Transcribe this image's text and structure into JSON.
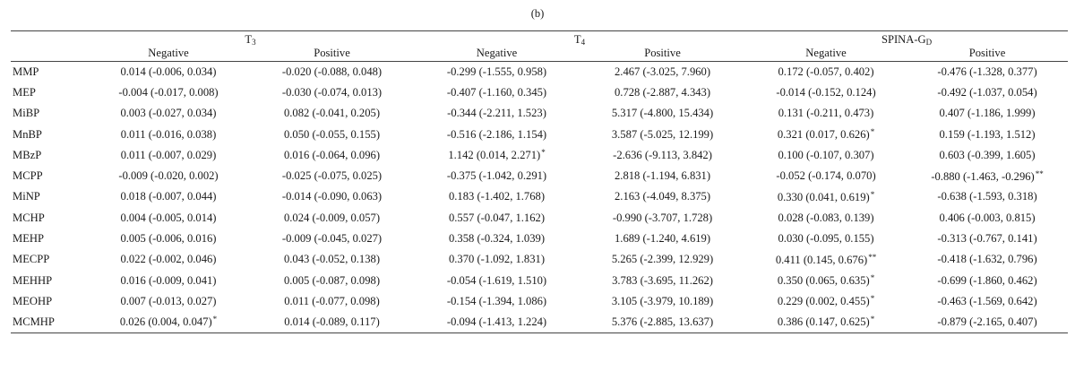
{
  "caption": "(b)",
  "groups": [
    {
      "base": "T",
      "sub": "3"
    },
    {
      "base": "T",
      "sub": "4"
    },
    {
      "base": "SPINA-G",
      "sub": "D"
    }
  ],
  "subheaders": [
    "Negative",
    "Positive",
    "Negative",
    "Positive",
    "Negative",
    "Positive"
  ],
  "rows": [
    {
      "label": "MMP",
      "cells": [
        {
          "v": "0.014 (-0.006, 0.034)",
          "s": ""
        },
        {
          "v": "-0.020 (-0.088, 0.048)",
          "s": ""
        },
        {
          "v": "-0.299 (-1.555, 0.958)",
          "s": ""
        },
        {
          "v": "2.467 (-3.025, 7.960)",
          "s": ""
        },
        {
          "v": "0.172 (-0.057, 0.402)",
          "s": ""
        },
        {
          "v": "-0.476 (-1.328, 0.377)",
          "s": ""
        }
      ]
    },
    {
      "label": "MEP",
      "cells": [
        {
          "v": "-0.004 (-0.017, 0.008)",
          "s": ""
        },
        {
          "v": "-0.030 (-0.074, 0.013)",
          "s": ""
        },
        {
          "v": "-0.407 (-1.160, 0.345)",
          "s": ""
        },
        {
          "v": "0.728 (-2.887, 4.343)",
          "s": ""
        },
        {
          "v": "-0.014 (-0.152, 0.124)",
          "s": ""
        },
        {
          "v": "-0.492 (-1.037, 0.054)",
          "s": ""
        }
      ]
    },
    {
      "label": "MiBP",
      "cells": [
        {
          "v": "0.003 (-0.027, 0.034)",
          "s": ""
        },
        {
          "v": "0.082 (-0.041, 0.205)",
          "s": ""
        },
        {
          "v": "-0.344 (-2.211, 1.523)",
          "s": ""
        },
        {
          "v": "5.317 (-4.800, 15.434)",
          "s": ""
        },
        {
          "v": "0.131 (-0.211, 0.473)",
          "s": ""
        },
        {
          "v": "0.407 (-1.186, 1.999)",
          "s": ""
        }
      ]
    },
    {
      "label": "MnBP",
      "cells": [
        {
          "v": "0.011 (-0.016, 0.038)",
          "s": ""
        },
        {
          "v": "0.050 (-0.055, 0.155)",
          "s": ""
        },
        {
          "v": "-0.516 (-2.186, 1.154)",
          "s": ""
        },
        {
          "v": "3.587 (-5.025, 12.199)",
          "s": ""
        },
        {
          "v": "0.321 (0.017, 0.626)",
          "s": "*"
        },
        {
          "v": "0.159 (-1.193, 1.512)",
          "s": ""
        }
      ]
    },
    {
      "label": "MBzP",
      "cells": [
        {
          "v": "0.011 (-0.007, 0.029)",
          "s": ""
        },
        {
          "v": "0.016 (-0.064, 0.096)",
          "s": ""
        },
        {
          "v": "1.142 (0.014, 2.271)",
          "s": "*"
        },
        {
          "v": "-2.636 (-9.113, 3.842)",
          "s": ""
        },
        {
          "v": "0.100 (-0.107, 0.307)",
          "s": ""
        },
        {
          "v": "0.603 (-0.399, 1.605)",
          "s": ""
        }
      ]
    },
    {
      "label": "MCPP",
      "cells": [
        {
          "v": "-0.009 (-0.020, 0.002)",
          "s": ""
        },
        {
          "v": "-0.025 (-0.075, 0.025)",
          "s": ""
        },
        {
          "v": "-0.375 (-1.042, 0.291)",
          "s": ""
        },
        {
          "v": "2.818 (-1.194, 6.831)",
          "s": ""
        },
        {
          "v": "-0.052 (-0.174, 0.070)",
          "s": ""
        },
        {
          "v": "-0.880 (-1.463, -0.296)",
          "s": "**"
        }
      ]
    },
    {
      "label": "MiNP",
      "cells": [
        {
          "v": "0.018 (-0.007, 0.044)",
          "s": ""
        },
        {
          "v": "-0.014 (-0.090, 0.063)",
          "s": ""
        },
        {
          "v": "0.183 (-1.402, 1.768)",
          "s": ""
        },
        {
          "v": "2.163 (-4.049, 8.375)",
          "s": ""
        },
        {
          "v": "0.330 (0.041, 0.619)",
          "s": "*"
        },
        {
          "v": "-0.638 (-1.593, 0.318)",
          "s": ""
        }
      ]
    },
    {
      "label": "MCHP",
      "cells": [
        {
          "v": "0.004 (-0.005, 0.014)",
          "s": ""
        },
        {
          "v": "0.024 (-0.009, 0.057)",
          "s": ""
        },
        {
          "v": "0.557 (-0.047, 1.162)",
          "s": ""
        },
        {
          "v": "-0.990 (-3.707, 1.728)",
          "s": ""
        },
        {
          "v": "0.028 (-0.083, 0.139)",
          "s": ""
        },
        {
          "v": "0.406 (-0.003, 0.815)",
          "s": ""
        }
      ]
    },
    {
      "label": "MEHP",
      "cells": [
        {
          "v": "0.005 (-0.006, 0.016)",
          "s": ""
        },
        {
          "v": "-0.009 (-0.045, 0.027)",
          "s": ""
        },
        {
          "v": "0.358 (-0.324, 1.039)",
          "s": ""
        },
        {
          "v": "1.689 (-1.240, 4.619)",
          "s": ""
        },
        {
          "v": "0.030 (-0.095, 0.155)",
          "s": ""
        },
        {
          "v": "-0.313 (-0.767, 0.141)",
          "s": ""
        }
      ]
    },
    {
      "label": "MECPP",
      "cells": [
        {
          "v": "0.022 (-0.002, 0.046)",
          "s": ""
        },
        {
          "v": "0.043 (-0.052, 0.138)",
          "s": ""
        },
        {
          "v": "0.370 (-1.092, 1.831)",
          "s": ""
        },
        {
          "v": "5.265 (-2.399, 12.929)",
          "s": ""
        },
        {
          "v": "0.411 (0.145, 0.676)",
          "s": "**"
        },
        {
          "v": "-0.418 (-1.632, 0.796)",
          "s": ""
        }
      ]
    },
    {
      "label": "MEHHP",
      "cells": [
        {
          "v": "0.016 (-0.009, 0.041)",
          "s": ""
        },
        {
          "v": "0.005 (-0.087, 0.098)",
          "s": ""
        },
        {
          "v": "-0.054 (-1.619, 1.510)",
          "s": ""
        },
        {
          "v": "3.783 (-3.695, 11.262)",
          "s": ""
        },
        {
          "v": "0.350 (0.065, 0.635)",
          "s": "*"
        },
        {
          "v": "-0.699 (-1.860, 0.462)",
          "s": ""
        }
      ]
    },
    {
      "label": "MEOHP",
      "cells": [
        {
          "v": "0.007 (-0.013, 0.027)",
          "s": ""
        },
        {
          "v": "0.011 (-0.077, 0.098)",
          "s": ""
        },
        {
          "v": "-0.154 (-1.394, 1.086)",
          "s": ""
        },
        {
          "v": "3.105 (-3.979, 10.189)",
          "s": ""
        },
        {
          "v": "0.229 (0.002, 0.455)",
          "s": "*"
        },
        {
          "v": "-0.463 (-1.569, 0.642)",
          "s": ""
        }
      ]
    },
    {
      "label": "MCMHP",
      "cells": [
        {
          "v": "0.026 (0.004, 0.047)",
          "s": "*"
        },
        {
          "v": "0.014 (-0.089, 0.117)",
          "s": ""
        },
        {
          "v": "-0.094 (-1.413, 1.224)",
          "s": ""
        },
        {
          "v": "5.376 (-2.885, 13.637)",
          "s": ""
        },
        {
          "v": "0.386 (0.147, 0.625)",
          "s": "*"
        },
        {
          "v": "-0.879 (-2.165, 0.407)",
          "s": ""
        }
      ]
    }
  ]
}
